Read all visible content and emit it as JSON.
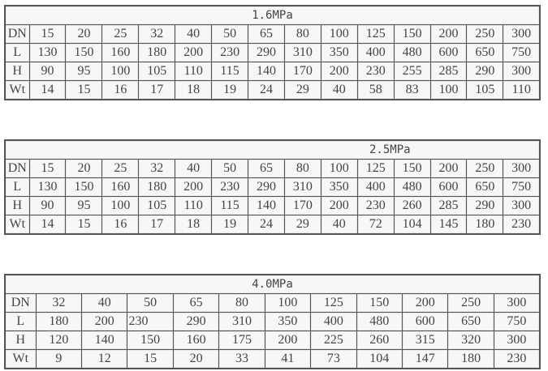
{
  "tables": [
    {
      "title": "1.6MPa",
      "rows": [
        [
          "DN",
          "15",
          "20",
          "25",
          "32",
          "40",
          "50",
          "65",
          "80",
          "100",
          "125",
          "150",
          "200",
          "250",
          "300"
        ],
        [
          "L",
          "130",
          "150",
          "160",
          "180",
          "200",
          "230",
          "290",
          "310",
          "350",
          "400",
          "480",
          "600",
          "650",
          "750"
        ],
        [
          "H",
          "90",
          "95",
          "100",
          "105",
          "110",
          "115",
          "140",
          "170",
          "200",
          "230",
          "255",
          "285",
          "290",
          "300"
        ],
        [
          "Wt",
          "14",
          "15",
          "16",
          "17",
          "18",
          "19",
          "24",
          "29",
          "40",
          "58",
          "83",
          "100",
          "105",
          "110"
        ]
      ]
    },
    {
      "title": "2.5MPa",
      "rows": [
        [
          "DN",
          "15",
          "20",
          "25",
          "32",
          "40",
          "50",
          "65",
          "80",
          "100",
          "125",
          "150",
          "200",
          "250",
          "300"
        ],
        [
          "L",
          "130",
          "150",
          "160",
          "180",
          "200",
          "230",
          "290",
          "310",
          "350",
          "400",
          "480",
          "600",
          "650",
          "750"
        ],
        [
          "H",
          "90",
          "95",
          "100",
          "105",
          "110",
          "115",
          "140",
          "170",
          "200",
          "230",
          "260",
          "285",
          "290",
          "300"
        ],
        [
          "Wt",
          "14",
          "15",
          "16",
          "17",
          "18",
          "19",
          "24",
          "29",
          "40",
          "72",
          "104",
          "145",
          "180",
          "230"
        ]
      ]
    },
    {
      "title": "4.0MPa",
      "rows": [
        [
          "DN",
          "32",
          "40",
          "50",
          "65",
          "80",
          "100",
          "125",
          "150",
          "200",
          "250",
          "300"
        ],
        [
          "L",
          "180",
          "200",
          "230",
          "290",
          "310",
          "350",
          "400",
          "480",
          "600",
          "650",
          "750"
        ],
        [
          "H",
          "120",
          "140",
          "150",
          "160",
          "175",
          "200",
          "225",
          "260",
          "315",
          "320",
          "300"
        ],
        [
          "Wt",
          "9",
          "12",
          "15",
          "20",
          "33",
          "41",
          "73",
          "104",
          "147",
          "180",
          "230"
        ]
      ]
    }
  ]
}
